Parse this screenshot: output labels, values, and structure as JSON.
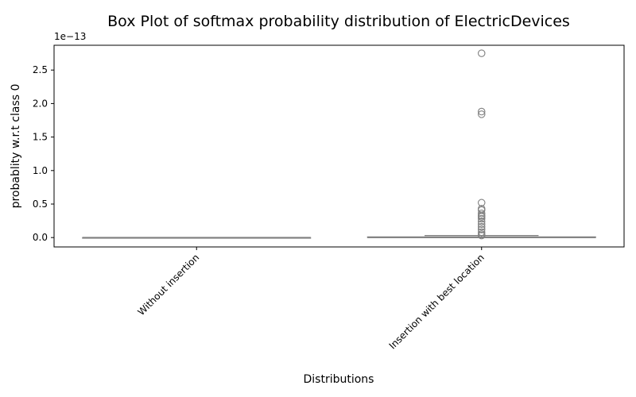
{
  "chart_data": {
    "type": "box",
    "title": "Box Plot of softmax probability distribution of ElectricDevices",
    "xlabel": "Distributions",
    "ylabel": "probablity w.r.t class 0",
    "y_offset_label": "1e−13",
    "y_scale": 1e-13,
    "ylim": [
      -0.14,
      2.87
    ],
    "yticks": [
      0.0,
      0.5,
      1.0,
      1.5,
      2.0,
      2.5
    ],
    "ytick_labels": [
      "0.0",
      "0.5",
      "1.0",
      "1.5",
      "2.0",
      "2.5"
    ],
    "categories": [
      "Without insertion",
      "Insertion with best location"
    ],
    "box_color": "#808080",
    "grid": false,
    "boxes": [
      {
        "category": "Without insertion",
        "min": 0.0,
        "q1": 0.0,
        "median": 0.0,
        "q3": 0.0,
        "max": 0.0,
        "outliers": []
      },
      {
        "category": "Insertion with best location",
        "min": 0.0,
        "q1": 0.0,
        "median": 0.002,
        "q3": 0.01,
        "max": 0.03,
        "outliers": [
          2.75,
          1.88,
          1.84,
          0.52,
          0.43,
          0.41,
          0.36,
          0.33,
          0.31,
          0.28,
          0.24,
          0.2,
          0.16,
          0.12,
          0.08,
          0.05,
          0.03
        ]
      }
    ]
  }
}
